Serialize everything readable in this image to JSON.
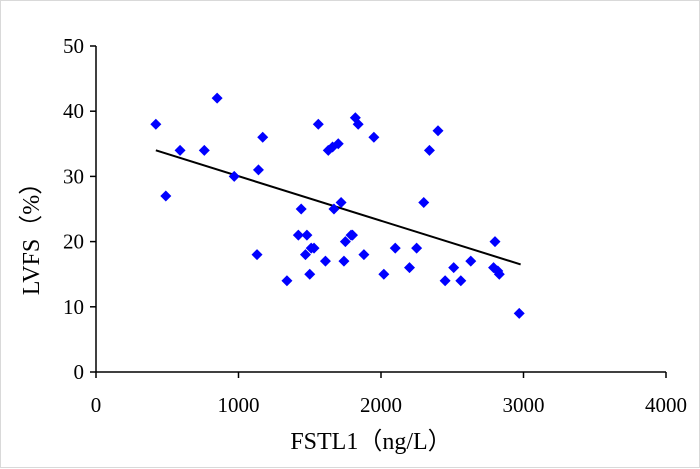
{
  "chart_data": {
    "type": "scatter",
    "title": "",
    "xlabel": "FSTL1（ng/L）",
    "ylabel": "LVFS（%）",
    "xlim": [
      0,
      4000
    ],
    "ylim": [
      0,
      50
    ],
    "xticks": [
      "0",
      "1000",
      "2000",
      "3000",
      "4000"
    ],
    "yticks": [
      "0",
      "10",
      "20",
      "30",
      "40",
      "50"
    ],
    "grid": false,
    "legend": "none",
    "marker": "diamond",
    "point_color": "#0000ff",
    "trendline_color": "#000000",
    "series": [
      {
        "x": [
          420,
          490,
          590,
          760,
          850,
          970,
          1130,
          1140,
          1170,
          1340,
          1420,
          1440,
          1470,
          1480,
          1500,
          1510,
          1530,
          1560,
          1610,
          1630,
          1660,
          1670,
          1700,
          1720,
          1740,
          1750,
          1790,
          1800,
          1820,
          1840,
          1880,
          1950,
          2020,
          2100,
          2200,
          2250,
          2300,
          2340,
          2400,
          2450,
          2510,
          2560,
          2630,
          2790,
          2800,
          2820,
          2830,
          2970
        ],
        "y": [
          38,
          27,
          34,
          34,
          42,
          30,
          18,
          31,
          36,
          14,
          21,
          25,
          18,
          21,
          15,
          19,
          19,
          38,
          17,
          34,
          34.5,
          25,
          35,
          26,
          17,
          20,
          21,
          21,
          39,
          38,
          18,
          36,
          15,
          19,
          16,
          19,
          26,
          34,
          37,
          14,
          16,
          14,
          17,
          16,
          20,
          15.5,
          15,
          9
        ]
      }
    ],
    "trendline": {
      "x": [
        420,
        2980
      ],
      "y": [
        34,
        16.5
      ]
    }
  }
}
